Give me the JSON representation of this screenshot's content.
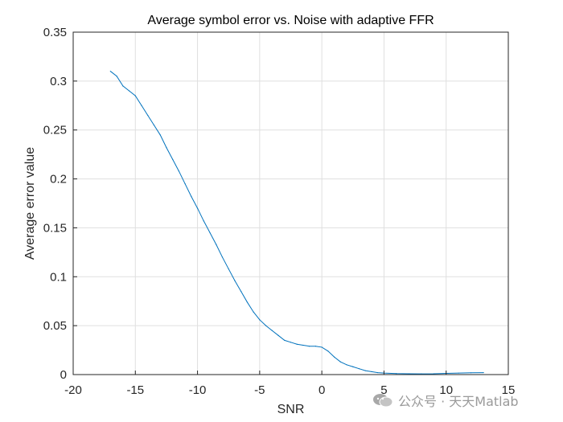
{
  "chart_data": {
    "type": "line",
    "title": "Average symbol error vs. Noise with adaptive FFR",
    "xlabel": "SNR",
    "ylabel": "Average error value",
    "xlim": [
      -20,
      15
    ],
    "ylim": [
      0,
      0.35
    ],
    "xticks": [
      "-20",
      "-15",
      "-10",
      "-5",
      "0",
      "5",
      "10",
      "15"
    ],
    "yticks": [
      "0",
      "0.05",
      "0.1",
      "0.15",
      "0.2",
      "0.25",
      "0.3",
      "0.35"
    ],
    "grid": true,
    "line_color": "#0072BD",
    "series": [
      {
        "x": [
          -17,
          -16.5,
          -16,
          -15.5,
          -15,
          -14.5,
          -14,
          -13.5,
          -13,
          -12.5,
          -12,
          -11.5,
          -11,
          -10.5,
          -10,
          -9.5,
          -9,
          -8.5,
          -8,
          -7.5,
          -7,
          -6.5,
          -6,
          -5.5,
          -5,
          -4.5,
          -4,
          -3.5,
          -3,
          -2.5,
          -2,
          -1.5,
          -1,
          -0.5,
          0,
          0.5,
          1,
          1.5,
          2,
          2.5,
          3,
          3.5,
          4,
          4.5,
          5,
          6,
          7,
          8,
          9,
          10,
          11,
          12,
          13
        ],
        "values": [
          0.31,
          0.305,
          0.295,
          0.29,
          0.285,
          0.275,
          0.265,
          0.255,
          0.245,
          0.232,
          0.22,
          0.208,
          0.195,
          0.182,
          0.17,
          0.157,
          0.145,
          0.133,
          0.12,
          0.108,
          0.096,
          0.085,
          0.074,
          0.064,
          0.056,
          0.05,
          0.045,
          0.04,
          0.035,
          0.033,
          0.031,
          0.03,
          0.029,
          0.029,
          0.028,
          0.024,
          0.018,
          0.013,
          0.01,
          0.008,
          0.006,
          0.004,
          0.003,
          0.002,
          0.0015,
          0.001,
          0.0008,
          0.0007,
          0.0008,
          0.0012,
          0.0015,
          0.0018,
          0.002
        ]
      }
    ]
  },
  "watermark": {
    "text": "公众号 · 天天Matlab",
    "icon": "wechat-icon"
  }
}
